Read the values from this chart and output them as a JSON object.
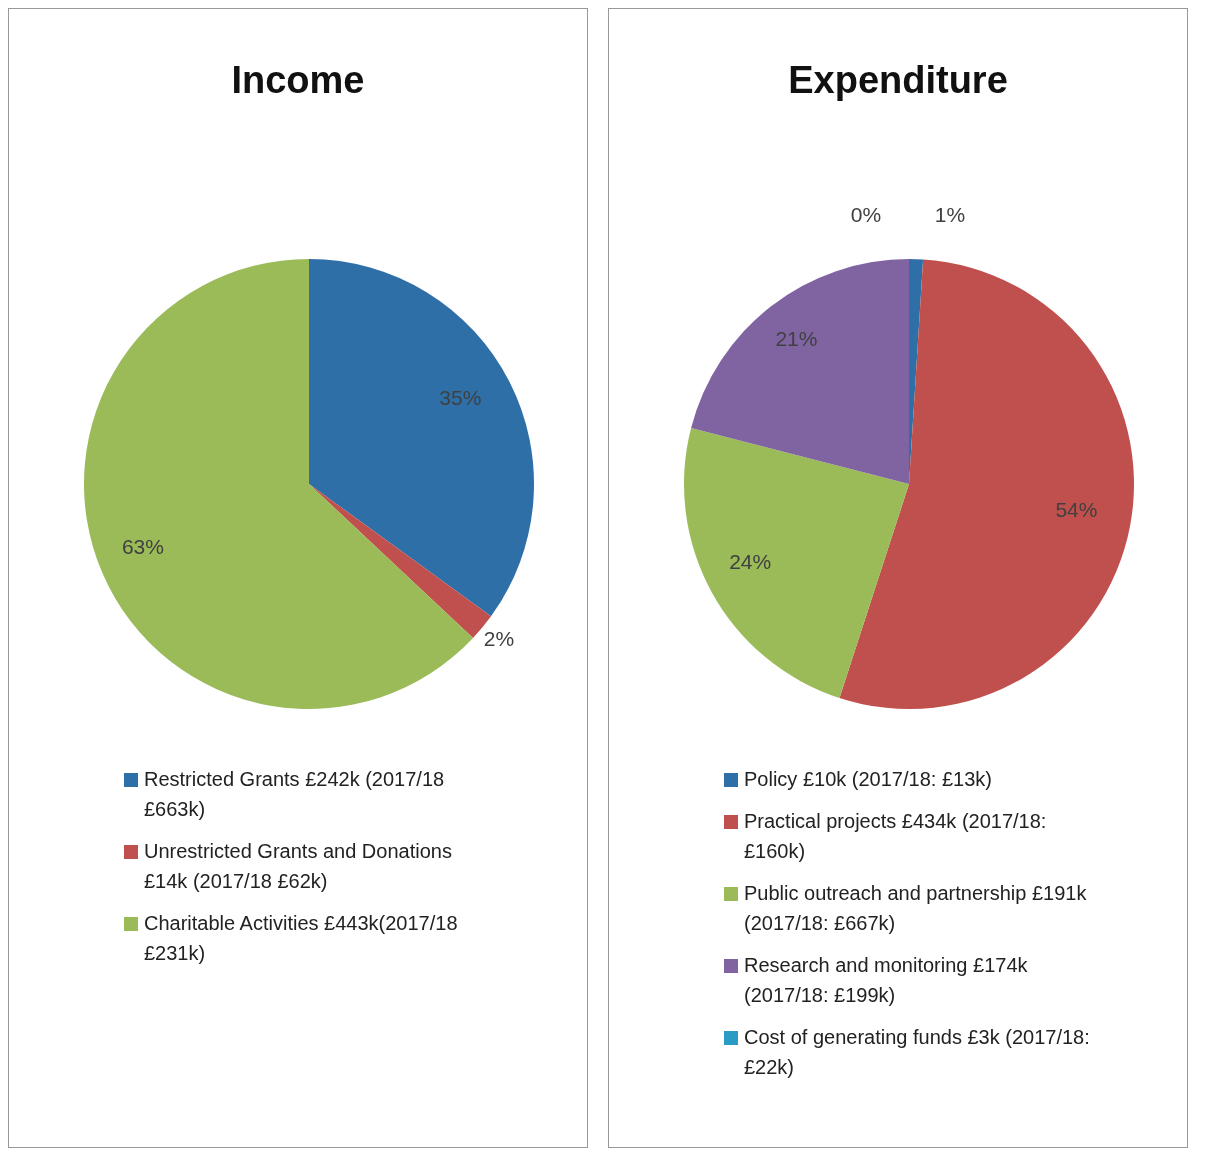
{
  "chart_data": [
    {
      "type": "pie",
      "title": "Income",
      "categories": [
        "Restricted Grants £242k (2017/18 £663k)",
        "Unrestricted Grants and Donations £14k (2017/18 £62k)",
        "Charitable Activities £443k(2017/18 £231k)"
      ],
      "values": [
        35,
        2,
        63
      ],
      "colors": [
        "#2e6fa7",
        "#c0504d",
        "#9bbb59"
      ],
      "value_labels": [
        "35%",
        "2%",
        "63%"
      ],
      "legend": "bottom"
    },
    {
      "type": "pie",
      "title": "Expenditure",
      "categories": [
        "Policy £10k (2017/18: £13k)",
        "Practical projects £434k (2017/18: £160k)",
        "Public outreach and partnership £191k (2017/18: £667k)",
        "Research and monitoring £174k (2017/18: £199k)",
        "Cost of generating funds £3k (2017/18: £22k)"
      ],
      "values": [
        1,
        54,
        24,
        21,
        0
      ],
      "colors": [
        "#2e6fa7",
        "#c0504d",
        "#9bbb59",
        "#8064a2",
        "#2a9bc4"
      ],
      "value_labels": [
        "1%",
        "54%",
        "24%",
        "21%",
        "0%"
      ],
      "legend": "bottom"
    }
  ]
}
